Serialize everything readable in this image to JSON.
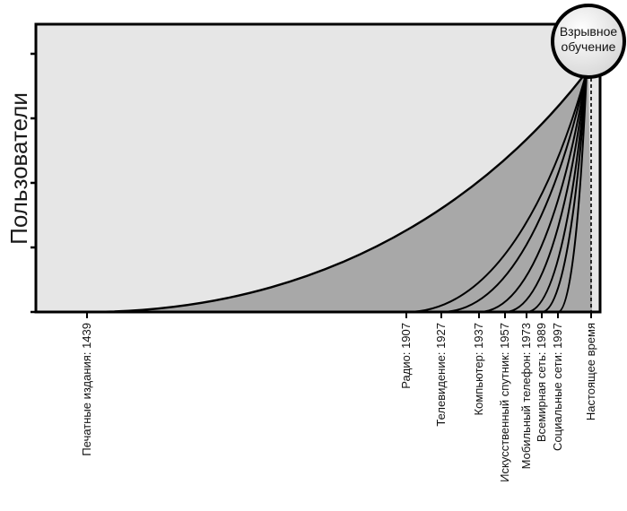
{
  "chart_data": {
    "type": "area",
    "ylabel": "Пользователи",
    "xlabel": "",
    "y_ticks": 5,
    "grid": false,
    "annotation": {
      "line1": "Взрывное",
      "line2": "обучение"
    },
    "series": [
      {
        "name": "Печатные издания: 1439",
        "start": 1439
      },
      {
        "name": "Радио: 1907",
        "start": 1907
      },
      {
        "name": "Телевидение: 1927",
        "start": 1927
      },
      {
        "name": "Компьютер: 1937",
        "start": 1937
      },
      {
        "name": "Искусственный спутник: 1957",
        "start": 1957
      },
      {
        "name": "Мобильный телефон: 1973",
        "start": 1973
      },
      {
        "name": "Всемирная сеть: 1989",
        "start": 1989
      },
      {
        "name": "Социальные сети: 1997",
        "start": 1997
      }
    ],
    "present_label": "Настоящее время",
    "colors": {
      "background": "#e6e6e6",
      "under_curves": "#a8a8a8",
      "curve": "#000000",
      "bubble_fill": "#f2f2f2"
    }
  }
}
